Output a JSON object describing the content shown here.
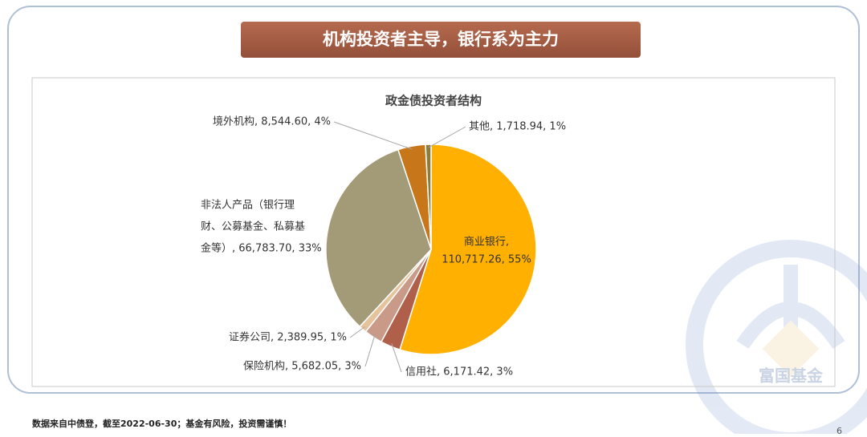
{
  "slide_title": "机构投资者主导，银行系为主力",
  "footer": "数据来自中债登，截至2022-06-30；基金有风险，投资需谨慎！",
  "page_number": "6",
  "watermark": "富国基金",
  "chart_data": {
    "type": "pie",
    "title": "政金债投资者结构",
    "values": [
      110717.26,
      6171.42,
      5682.05,
      2389.95,
      66783.7,
      8544.6,
      1718.94
    ],
    "value_labels": [
      [
        "商业银行,",
        "110,717.26, 55%"
      ],
      [
        "信用社, 6,171.42, 3%"
      ],
      [
        "保险机构, 5,682.05, 3%"
      ],
      [
        "证券公司, 2,389.95, 1%"
      ],
      [
        "非法人产品（银行理",
        "财、公募基金、私募基",
        "金等）, 66,783.70, 33%"
      ],
      [
        "境外机构, 8,544.60, 4%"
      ],
      [
        "其他, 1,718.94, 1%"
      ]
    ],
    "colors": [
      "#FFB000",
      "#B0604A",
      "#C99A88",
      "#E6C39A",
      "#A39A77",
      "#C7771A",
      "#8E7B36"
    ],
    "start_angle": 0,
    "direction": "clockwise"
  }
}
